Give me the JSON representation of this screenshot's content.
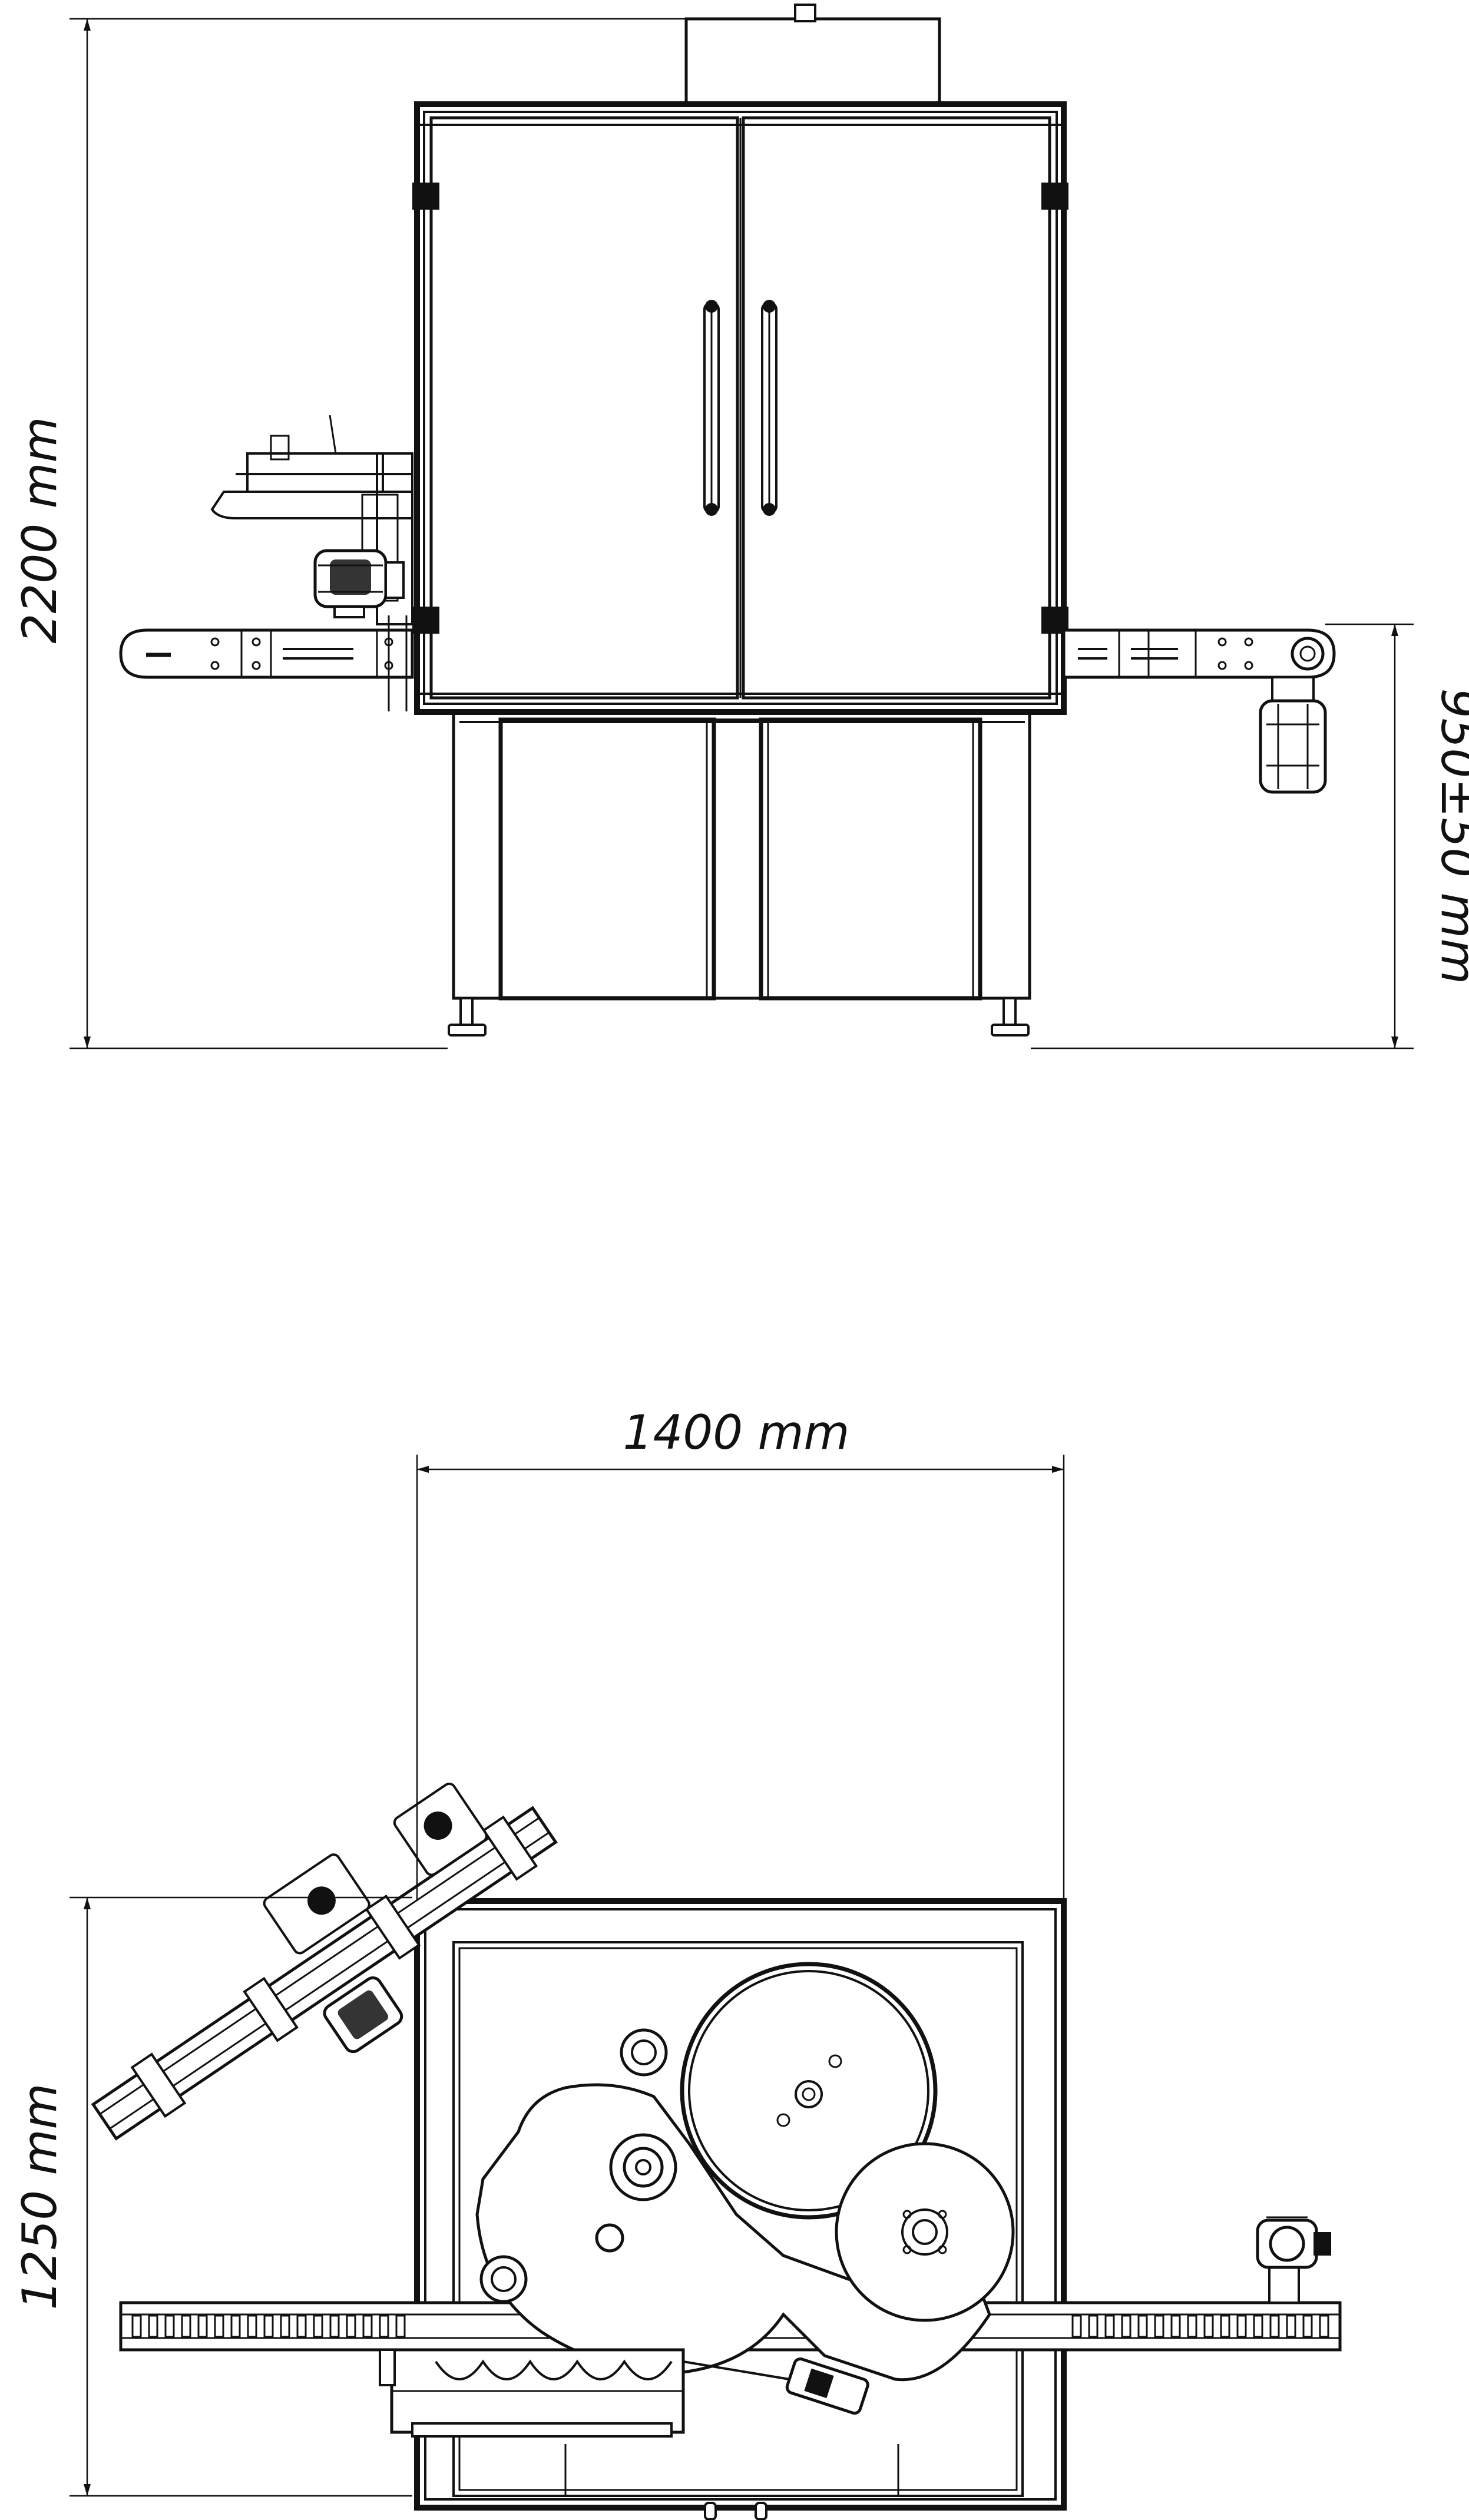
{
  "drawing": {
    "front_view": {
      "height_dimension": "2200 mm",
      "conveyor_height_dimension": "950±50 mm"
    },
    "top_view": {
      "width_dimension": "1400 mm",
      "depth_dimension": "1250 mm"
    },
    "line_color": "#111111",
    "background": "#ffffff"
  }
}
